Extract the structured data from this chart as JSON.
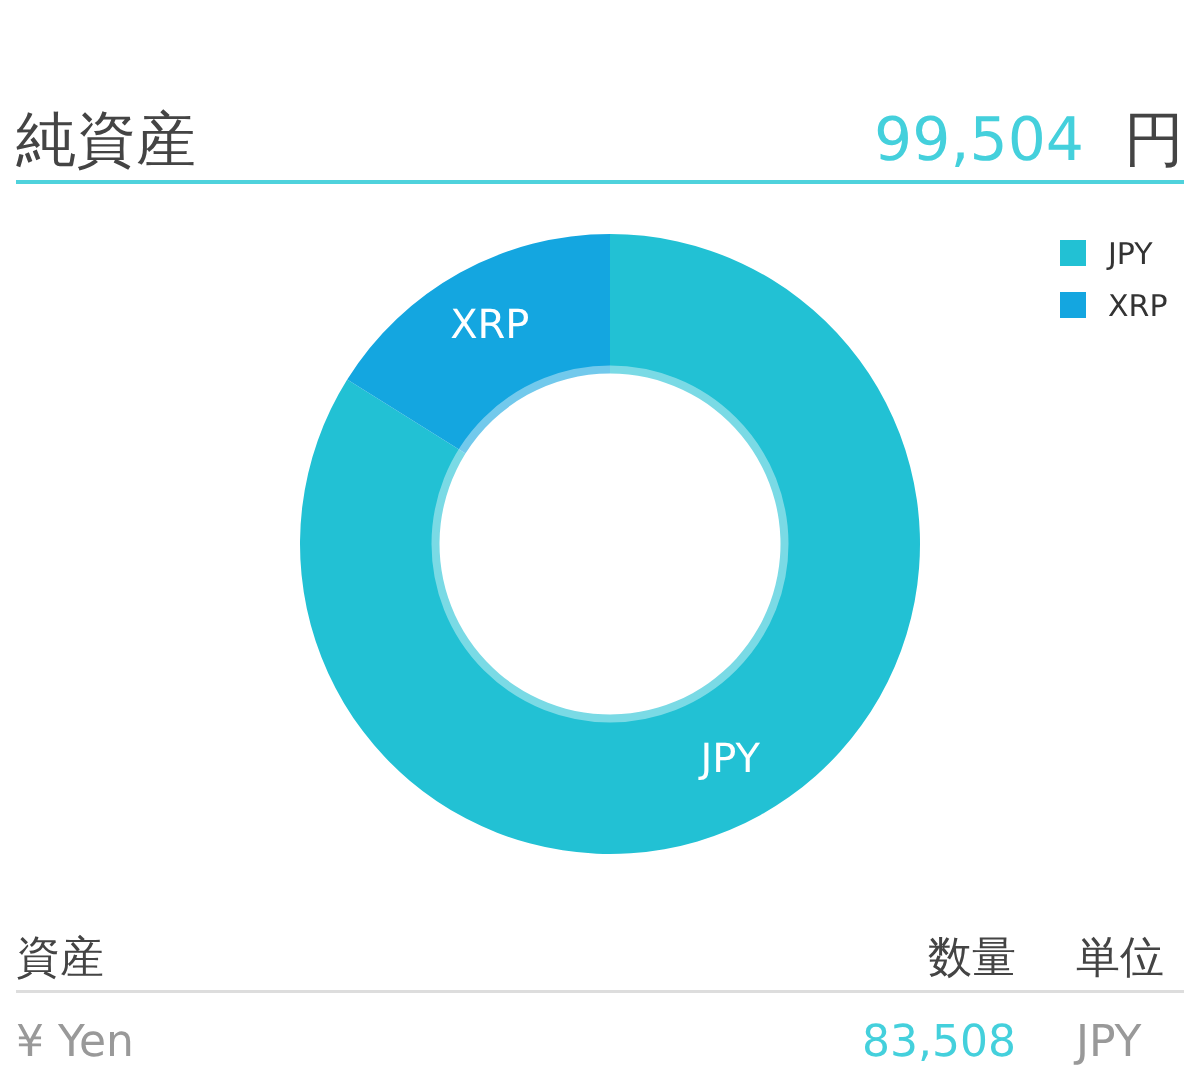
{
  "chart_data": {
    "type": "donut",
    "title": "純資産",
    "subtitle": "99,504 円",
    "categories": [
      "JPY",
      "XRP"
    ],
    "values": [
      83.9,
      16.1
    ],
    "colors": [
      "#22c1d4",
      "#14a6e0"
    ],
    "legend": "top right",
    "annotations": [
      "資産",
      "数量",
      "単位",
      "¥ Yen",
      "83,508",
      "JPY"
    ]
  }
}
